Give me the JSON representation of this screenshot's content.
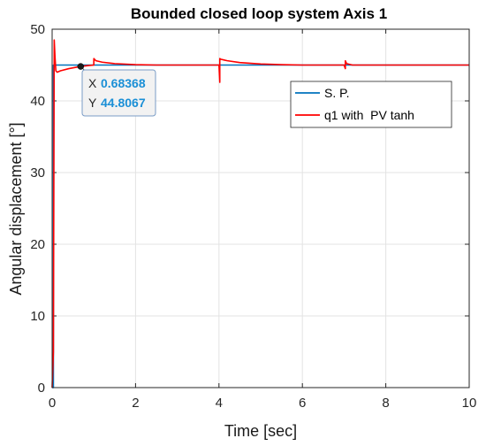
{
  "chart_data": {
    "type": "line",
    "title": "Bounded closed loop system Axis 1",
    "xlabel": "Time [sec]",
    "ylabel": "Angular displacement [°]",
    "xlim": [
      0,
      10
    ],
    "ylim": [
      0,
      50
    ],
    "xticks": [
      "0",
      "2",
      "4",
      "6",
      "8",
      "10"
    ],
    "yticks": [
      "0",
      "10",
      "20",
      "30",
      "40",
      "50"
    ],
    "grid": true,
    "legend_position": "top-right",
    "series": [
      {
        "name": "S. P.",
        "color": "#0072bd",
        "x": [
          0,
          0.03,
          0.03,
          10
        ],
        "y": [
          0,
          0,
          45,
          45
        ]
      },
      {
        "name": "q1 with  PV tanh",
        "color": "#ff0000",
        "x": [
          0,
          0.03,
          0.05,
          0.07,
          0.09,
          0.12,
          0.2,
          0.4,
          0.68368,
          0.9,
          1.0,
          1.0,
          1.05,
          1.2,
          1.5,
          2.0,
          2.5,
          3.0,
          3.5,
          4.0,
          4.02,
          4.02,
          4.05,
          4.2,
          4.5,
          5.0,
          5.5,
          6.0,
          6.5,
          7.0,
          7.03,
          7.03,
          7.06,
          7.2,
          8.0,
          9.0,
          10.0
        ],
        "y": [
          0,
          5,
          48.5,
          46,
          44.2,
          44.0,
          44.2,
          44.5,
          44.8067,
          44.95,
          45.0,
          45.9,
          45.6,
          45.4,
          45.2,
          45.05,
          45.0,
          45.0,
          45.0,
          45.0,
          42.6,
          45.9,
          45.8,
          45.6,
          45.35,
          45.15,
          45.05,
          45.0,
          45.0,
          45.0,
          44.5,
          45.6,
          45.2,
          45.0,
          45.0,
          45.0,
          45.0
        ]
      }
    ],
    "datatip": {
      "x_label": "X",
      "x_value": "0.68368",
      "y_label": "Y",
      "y_value": "44.8067",
      "x": 0.68368,
      "y": 44.8067
    }
  }
}
